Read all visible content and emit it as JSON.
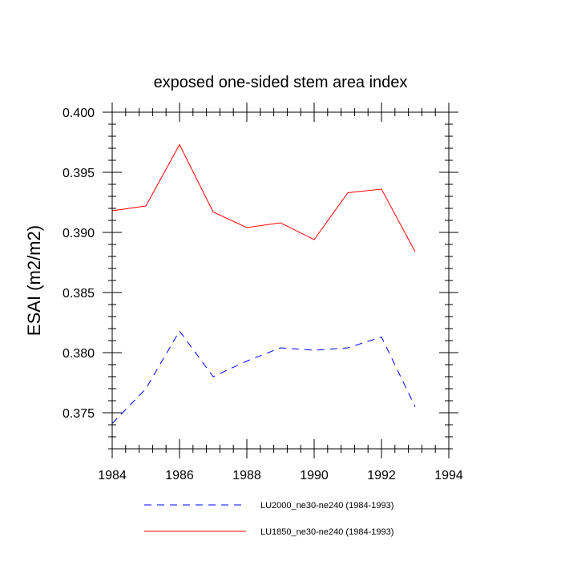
{
  "chart_data": {
    "type": "line",
    "title": "exposed one-sided stem area index",
    "xlabel": "",
    "ylabel": "ESAI  (m2/m2)",
    "xlim": [
      1984,
      1994
    ],
    "ylim": [
      0.372,
      0.4
    ],
    "x_ticks": [
      1984,
      1986,
      1988,
      1990,
      1992,
      1994
    ],
    "x_tick_labels": [
      "1984",
      "1986",
      "1988",
      "1990",
      "1992",
      "1994"
    ],
    "y_ticks": [
      0.375,
      0.38,
      0.385,
      0.39,
      0.395,
      0.4
    ],
    "y_tick_labels": [
      "0.375",
      "0.380",
      "0.385",
      "0.390",
      "0.395",
      "0.400"
    ],
    "x": [
      1984,
      1985,
      1986,
      1987,
      1988,
      1989,
      1990,
      1991,
      1992,
      1993
    ],
    "series": [
      {
        "name": "LU2000_ne30-ne240 (1984-1993)",
        "color": "#0000ff",
        "dash": "dashed",
        "values": [
          0.3741,
          0.377,
          0.3818,
          0.378,
          0.3793,
          0.3804,
          0.3802,
          0.3804,
          0.3813,
          0.3755
        ]
      },
      {
        "name": "LU1850_ne30-ne240 (1984-1993)",
        "color": "#ff0000",
        "dash": "solid",
        "values": [
          0.3918,
          0.3922,
          0.3973,
          0.3917,
          0.3904,
          0.3908,
          0.3894,
          0.3933,
          0.3936,
          0.3884
        ]
      }
    ],
    "grid": false,
    "legend_position": "bottom"
  }
}
